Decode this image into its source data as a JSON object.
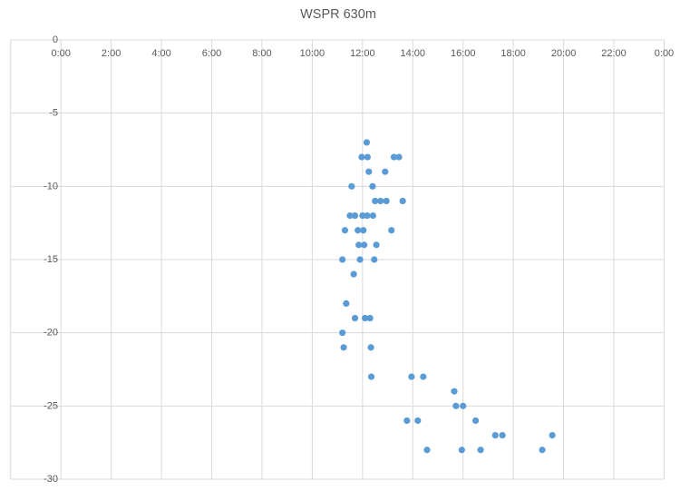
{
  "chart": {
    "title": "WSPR 630m"
  },
  "chart_data": {
    "type": "scatter",
    "title": "WSPR 630m",
    "xlabel": "",
    "ylabel": "",
    "legend": "none",
    "grid": true,
    "x_axis": {
      "unit": "time of day (h:mm)",
      "tick_labels": [
        "0:00",
        "2:00",
        "4:00",
        "6:00",
        "8:00",
        "10:00",
        "12:00",
        "14:00",
        "16:00",
        "18:00",
        "20:00",
        "22:00",
        "0:00"
      ],
      "tick_hours": [
        0,
        2,
        4,
        6,
        8,
        10,
        12,
        14,
        16,
        18,
        20,
        22,
        24
      ],
      "min_hours": -2,
      "max_hours": 24,
      "labels_position": "below top axis (axis at y=0)"
    },
    "y_axis": {
      "tick_labels": [
        "0",
        "-5",
        "-10",
        "-15",
        "-20",
        "-25",
        "-30"
      ],
      "tick_values": [
        0,
        -5,
        -10,
        -15,
        -20,
        -25,
        -30
      ],
      "min": -30,
      "max": 0
    },
    "colors": {
      "marker": "#5B9BD5",
      "gridline": "#D9D9D9",
      "text": "#595959"
    },
    "points": [
      {
        "time": "12:10",
        "snr": -7
      },
      {
        "time": "11:58",
        "snr": -8
      },
      {
        "time": "12:12",
        "snr": -8
      },
      {
        "time": "13:15",
        "snr": -8
      },
      {
        "time": "13:27",
        "snr": -8
      },
      {
        "time": "12:15",
        "snr": -9
      },
      {
        "time": "12:54",
        "snr": -9
      },
      {
        "time": "11:34",
        "snr": -10
      },
      {
        "time": "12:24",
        "snr": -10
      },
      {
        "time": "12:30",
        "snr": -11
      },
      {
        "time": "12:43",
        "snr": -11
      },
      {
        "time": "12:57",
        "snr": -11
      },
      {
        "time": "13:36",
        "snr": -11
      },
      {
        "time": "11:30",
        "snr": -12
      },
      {
        "time": "11:42",
        "snr": -12
      },
      {
        "time": "12:00",
        "snr": -12
      },
      {
        "time": "12:11",
        "snr": -12
      },
      {
        "time": "12:25",
        "snr": -12
      },
      {
        "time": "11:18",
        "snr": -13
      },
      {
        "time": "11:49",
        "snr": -13
      },
      {
        "time": "12:02",
        "snr": -13
      },
      {
        "time": "13:09",
        "snr": -13
      },
      {
        "time": "11:51",
        "snr": -14
      },
      {
        "time": "12:04",
        "snr": -14
      },
      {
        "time": "12:33",
        "snr": -14
      },
      {
        "time": "11:12",
        "snr": -15
      },
      {
        "time": "11:54",
        "snr": -15
      },
      {
        "time": "12:28",
        "snr": -15
      },
      {
        "time": "11:39",
        "snr": -16
      },
      {
        "time": "11:21",
        "snr": -18
      },
      {
        "time": "11:42",
        "snr": -19
      },
      {
        "time": "12:06",
        "snr": -19
      },
      {
        "time": "12:18",
        "snr": -19
      },
      {
        "time": "11:12",
        "snr": -20
      },
      {
        "time": "11:15",
        "snr": -21
      },
      {
        "time": "12:20",
        "snr": -21
      },
      {
        "time": "12:21",
        "snr": -23
      },
      {
        "time": "13:57",
        "snr": -23
      },
      {
        "time": "14:25",
        "snr": -23
      },
      {
        "time": "15:39",
        "snr": -24
      },
      {
        "time": "15:43",
        "snr": -25
      },
      {
        "time": "16:00",
        "snr": -25
      },
      {
        "time": "13:46",
        "snr": -26
      },
      {
        "time": "14:12",
        "snr": -26
      },
      {
        "time": "16:30",
        "snr": -26
      },
      {
        "time": "17:17",
        "snr": -27
      },
      {
        "time": "17:34",
        "snr": -27
      },
      {
        "time": "19:33",
        "snr": -27
      },
      {
        "time": "14:34",
        "snr": -28
      },
      {
        "time": "15:57",
        "snr": -28
      },
      {
        "time": "16:42",
        "snr": -28
      },
      {
        "time": "19:09",
        "snr": -28
      }
    ]
  }
}
